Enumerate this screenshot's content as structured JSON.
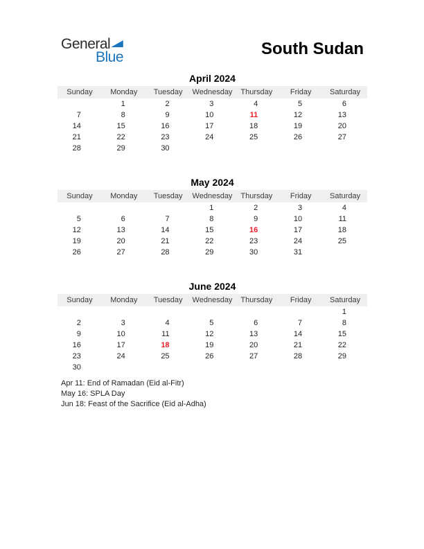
{
  "logo": {
    "word1": "General",
    "word2": "Blue"
  },
  "header": {
    "title": "South Sudan"
  },
  "weekdays": [
    "Sunday",
    "Monday",
    "Tuesday",
    "Wednesday",
    "Thursday",
    "Friday",
    "Saturday"
  ],
  "months": [
    {
      "title": "April 2024",
      "holidays": [
        "11"
      ],
      "weeks": [
        [
          "",
          "1",
          "2",
          "3",
          "4",
          "5",
          "6"
        ],
        [
          "7",
          "8",
          "9",
          "10",
          "11",
          "12",
          "13"
        ],
        [
          "14",
          "15",
          "16",
          "17",
          "18",
          "19",
          "20"
        ],
        [
          "21",
          "22",
          "23",
          "24",
          "25",
          "26",
          "27"
        ],
        [
          "28",
          "29",
          "30",
          "",
          "",
          "",
          ""
        ]
      ]
    },
    {
      "title": "May 2024",
      "holidays": [
        "16"
      ],
      "weeks": [
        [
          "",
          "",
          "",
          "1",
          "2",
          "3",
          "4"
        ],
        [
          "5",
          "6",
          "7",
          "8",
          "9",
          "10",
          "11"
        ],
        [
          "12",
          "13",
          "14",
          "15",
          "16",
          "17",
          "18"
        ],
        [
          "19",
          "20",
          "21",
          "22",
          "23",
          "24",
          "25"
        ],
        [
          "26",
          "27",
          "28",
          "29",
          "30",
          "31",
          ""
        ]
      ]
    },
    {
      "title": "June 2024",
      "holidays": [
        "18"
      ],
      "weeks": [
        [
          "",
          "",
          "",
          "",
          "",
          "",
          "1"
        ],
        [
          "2",
          "3",
          "4",
          "5",
          "6",
          "7",
          "8"
        ],
        [
          "9",
          "10",
          "11",
          "12",
          "13",
          "14",
          "15"
        ],
        [
          "16",
          "17",
          "18",
          "19",
          "20",
          "21",
          "22"
        ],
        [
          "23",
          "24",
          "25",
          "26",
          "27",
          "28",
          "29"
        ],
        [
          "30",
          "",
          "",
          "",
          "",
          "",
          ""
        ]
      ]
    }
  ],
  "notes": [
    "Apr 11: End of Ramadan (Eid al-Fitr)",
    "May 16: SPLA Day",
    "Jun 18: Feast of the Sacrifice (Eid al-Adha)"
  ],
  "colors": {
    "accent_red": "#ee1c25",
    "logo_blue": "#1b75bc",
    "weekday_band": "#efefef"
  }
}
